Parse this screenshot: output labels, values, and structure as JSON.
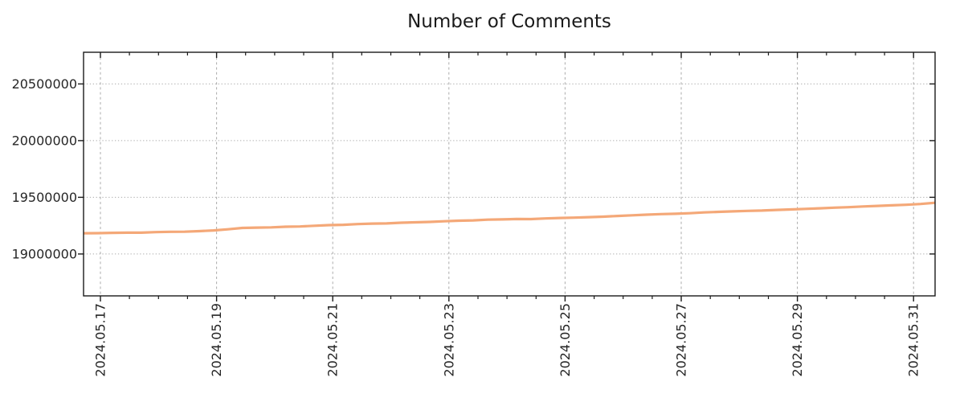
{
  "title": "Number of Comments",
  "colors": {
    "line": "#f4a878",
    "grid": "#ababab",
    "axis": "#1a1a1a",
    "text": "#262626",
    "background": "#ffffff"
  },
  "chart_data": {
    "type": "line",
    "title": "Number of Comments",
    "xlabel": "",
    "ylabel": "",
    "legend": "none",
    "grid": "dotted-major",
    "x_tick_labels": [
      "2024.05.17",
      "2024.05.19",
      "2024.05.21",
      "2024.05.23",
      "2024.05.25",
      "2024.05.27",
      "2024.05.29",
      "2024.05.31"
    ],
    "x_tick_days": [
      0,
      2,
      4,
      6,
      8,
      10,
      12,
      14
    ],
    "x_minor_tick_interval_days": 0.5,
    "xlim_days": [
      -0.29,
      14.37
    ],
    "y_ticks": [
      {
        "value": 19000000,
        "label": "19000000"
      },
      {
        "value": 19500000,
        "label": "19500000"
      },
      {
        "value": 20000000,
        "label": "20000000"
      },
      {
        "value": 20500000,
        "label": "20500000"
      }
    ],
    "ylim": [
      18631000,
      20779000
    ],
    "series": [
      {
        "name": "number-of-comments",
        "color": "#f4a878",
        "start_day": -0.29,
        "end_day": 14.37,
        "values": [
          19183000,
          19184000,
          19187000,
          19188000,
          19188000,
          19193000,
          19196000,
          19197000,
          19202000,
          19208000,
          19218000,
          19230000,
          19233000,
          19235000,
          19241000,
          19243000,
          19249000,
          19255000,
          19258000,
          19264000,
          19268000,
          19270000,
          19276000,
          19280000,
          19283000,
          19289000,
          19294000,
          19297000,
          19303000,
          19305000,
          19309000,
          19308000,
          19314000,
          19318000,
          19321000,
          19325000,
          19329000,
          19336000,
          19341000,
          19347000,
          19352000,
          19355000,
          19360000,
          19367000,
          19372000,
          19376000,
          19380000,
          19383000,
          19389000,
          19393000,
          19398000,
          19403000,
          19409000,
          19413000,
          19419000,
          19424000,
          19429000,
          19434000,
          19441000,
          19452000
        ]
      }
    ]
  }
}
